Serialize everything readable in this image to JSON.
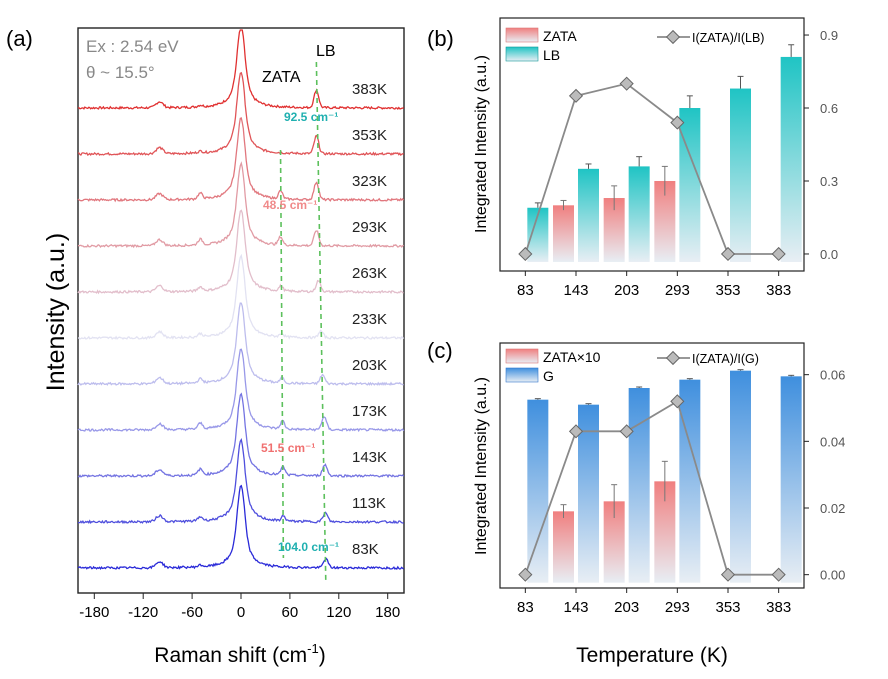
{
  "chart_data": [
    {
      "panel": "(a)",
      "type": "line",
      "xlabel": "Raman shift (cm",
      "xlabel_sup": "-1",
      "xlabel_end": ")",
      "ylabel": "Intensity (a.u.)",
      "xlim": [
        -200,
        200
      ],
      "xticks": [
        -180,
        -120,
        -60,
        0,
        60,
        120,
        180
      ],
      "annotations": {
        "excitation": "Ex : 2.54 eV",
        "angle": "θ ~ 15.5°",
        "zata": "ZATA",
        "lb": "LB",
        "shift_lb_high": "92.5 cm⁻¹",
        "shift_zata_high": "48.5 cm⁻¹",
        "shift_zata_low": "51.5 cm⁻¹",
        "shift_lb_low": "104.0 cm⁻¹"
      },
      "colors": {
        "hot": "#e03030",
        "cold": "#2a2ad8",
        "guide": "#5cc05c"
      },
      "series": [
        {
          "name": "383K",
          "zata": 0,
          "lb": 0.8,
          "peaks": [
            92.5
          ]
        },
        {
          "name": "353K",
          "zata": 0,
          "lb": 0.8,
          "peaks": [
            92.5
          ]
        },
        {
          "name": "323K",
          "zata": 0.5,
          "lb": 0.8,
          "peaks": [
            48.5,
            92.5
          ]
        },
        {
          "name": "293K",
          "zata": 0.5,
          "lb": 0.7,
          "peaks": [
            48.5,
            92.5
          ]
        },
        {
          "name": "263K",
          "zata": 0.3,
          "lb": 0.5,
          "peaks": [
            49,
            95
          ]
        },
        {
          "name": "233K",
          "zata": 0.2,
          "lb": 0.3,
          "peaks": [
            50,
            98
          ]
        },
        {
          "name": "203K",
          "zata": 0.3,
          "lb": 0.4,
          "peaks": [
            50.5,
            100
          ]
        },
        {
          "name": "173K",
          "zata": 0.5,
          "lb": 0.6,
          "peaks": [
            51,
            102
          ]
        },
        {
          "name": "143K",
          "zata": 0.5,
          "lb": 0.5,
          "peaks": [
            51.5,
            103
          ]
        },
        {
          "name": "113K",
          "zata": 0.3,
          "lb": 0.4,
          "peaks": [
            52,
            103.5
          ]
        },
        {
          "name": "83K",
          "zata": 0,
          "lb": 0.4,
          "peaks": [
            104.0
          ]
        }
      ]
    },
    {
      "panel": "(b)",
      "type": "bar",
      "xlabel": "Temperature (K)",
      "ylabel": "Integrated Intensity (a.u.)",
      "categories": [
        "83",
        "143",
        "203",
        "293",
        "353",
        "383"
      ],
      "ylim": [
        -0.07,
        0.97
      ],
      "yticks": [
        "0.0",
        "0.3",
        "0.6",
        "0.9"
      ],
      "series": [
        {
          "name": "ZATA",
          "values": [
            null,
            0.2,
            0.23,
            0.3,
            null,
            null
          ],
          "errors": [
            null,
            0.02,
            0.05,
            0.06,
            null,
            null
          ],
          "color": "#f07f7f"
        },
        {
          "name": "LB",
          "values": [
            0.19,
            0.35,
            0.36,
            0.6,
            0.68,
            0.81
          ],
          "errors": [
            0.02,
            0.02,
            0.04,
            0.05,
            0.05,
            0.05
          ],
          "color": "#1fc4c4"
        },
        {
          "name": "I(ZATA)/I(LB)",
          "type": "line",
          "values": [
            0.0,
            0.65,
            0.7,
            0.54,
            0.0,
            0.0
          ],
          "color": "#8a8a8a"
        }
      ]
    },
    {
      "panel": "(c)",
      "type": "bar",
      "xlabel": "Temperature (K)",
      "ylabel": "Integrated Intensity (a.u.)",
      "categories": [
        "83",
        "143",
        "203",
        "293",
        "353",
        "383"
      ],
      "ylim": [
        -0.004,
        0.0695
      ],
      "yticks": [
        "0.00",
        "0.02",
        "0.04",
        "0.06"
      ],
      "series": [
        {
          "name": "ZATA×10",
          "values": [
            null,
            0.019,
            0.022,
            0.028,
            null,
            null
          ],
          "errors": [
            null,
            0.002,
            0.005,
            0.006,
            null,
            null
          ],
          "color": "#f07f7f"
        },
        {
          "name": "G",
          "values": [
            0.0525,
            0.051,
            0.056,
            0.0585,
            0.0612,
            0.0595
          ],
          "errors": [
            0.0003,
            0.0003,
            0.0003,
            0.0003,
            0.0003,
            0.0003
          ],
          "color": "#3f8fde"
        },
        {
          "name": "I(ZATA)/I(G)",
          "type": "line",
          "values": [
            0.0,
            0.043,
            0.043,
            0.052,
            0.0,
            0.0
          ],
          "color": "#8a8a8a"
        }
      ]
    }
  ]
}
